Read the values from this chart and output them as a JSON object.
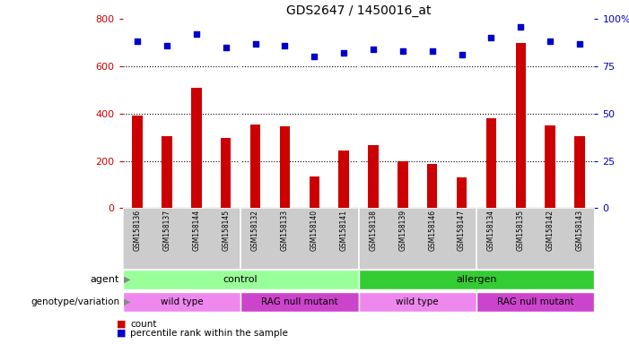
{
  "title": "GDS2647 / 1450016_at",
  "samples": [
    "GSM158136",
    "GSM158137",
    "GSM158144",
    "GSM158145",
    "GSM158132",
    "GSM158133",
    "GSM158140",
    "GSM158141",
    "GSM158138",
    "GSM158139",
    "GSM158146",
    "GSM158147",
    "GSM158134",
    "GSM158135",
    "GSM158142",
    "GSM158143"
  ],
  "counts": [
    390,
    305,
    510,
    295,
    355,
    345,
    135,
    245,
    265,
    200,
    185,
    130,
    380,
    700,
    350,
    305
  ],
  "percentiles": [
    88,
    86,
    92,
    85,
    87,
    86,
    80,
    82,
    84,
    83,
    83,
    81,
    90,
    96,
    88,
    87
  ],
  "ylim_left": [
    0,
    800
  ],
  "ylim_right": [
    0,
    100
  ],
  "yticks_left": [
    0,
    200,
    400,
    600,
    800
  ],
  "yticks_right": [
    0,
    25,
    50,
    75,
    100
  ],
  "bar_color": "#cc0000",
  "dot_color": "#0000cc",
  "grid_color": "#000000",
  "agent_control_label": "control",
  "agent_allergen_label": "allergen",
  "genotype_wt_label": "wild type",
  "genotype_rag_label": "RAG null mutant",
  "agent_label": "agent",
  "genotype_label": "genotype/variation",
  "legend_count": "count",
  "legend_percentile": "percentile rank within the sample",
  "control_color": "#99ff99",
  "allergen_color": "#33cc33",
  "wt_color": "#ee88ee",
  "rag_color": "#cc44cc",
  "label_bg_color": "#cccccc",
  "background_color": "#ffffff"
}
